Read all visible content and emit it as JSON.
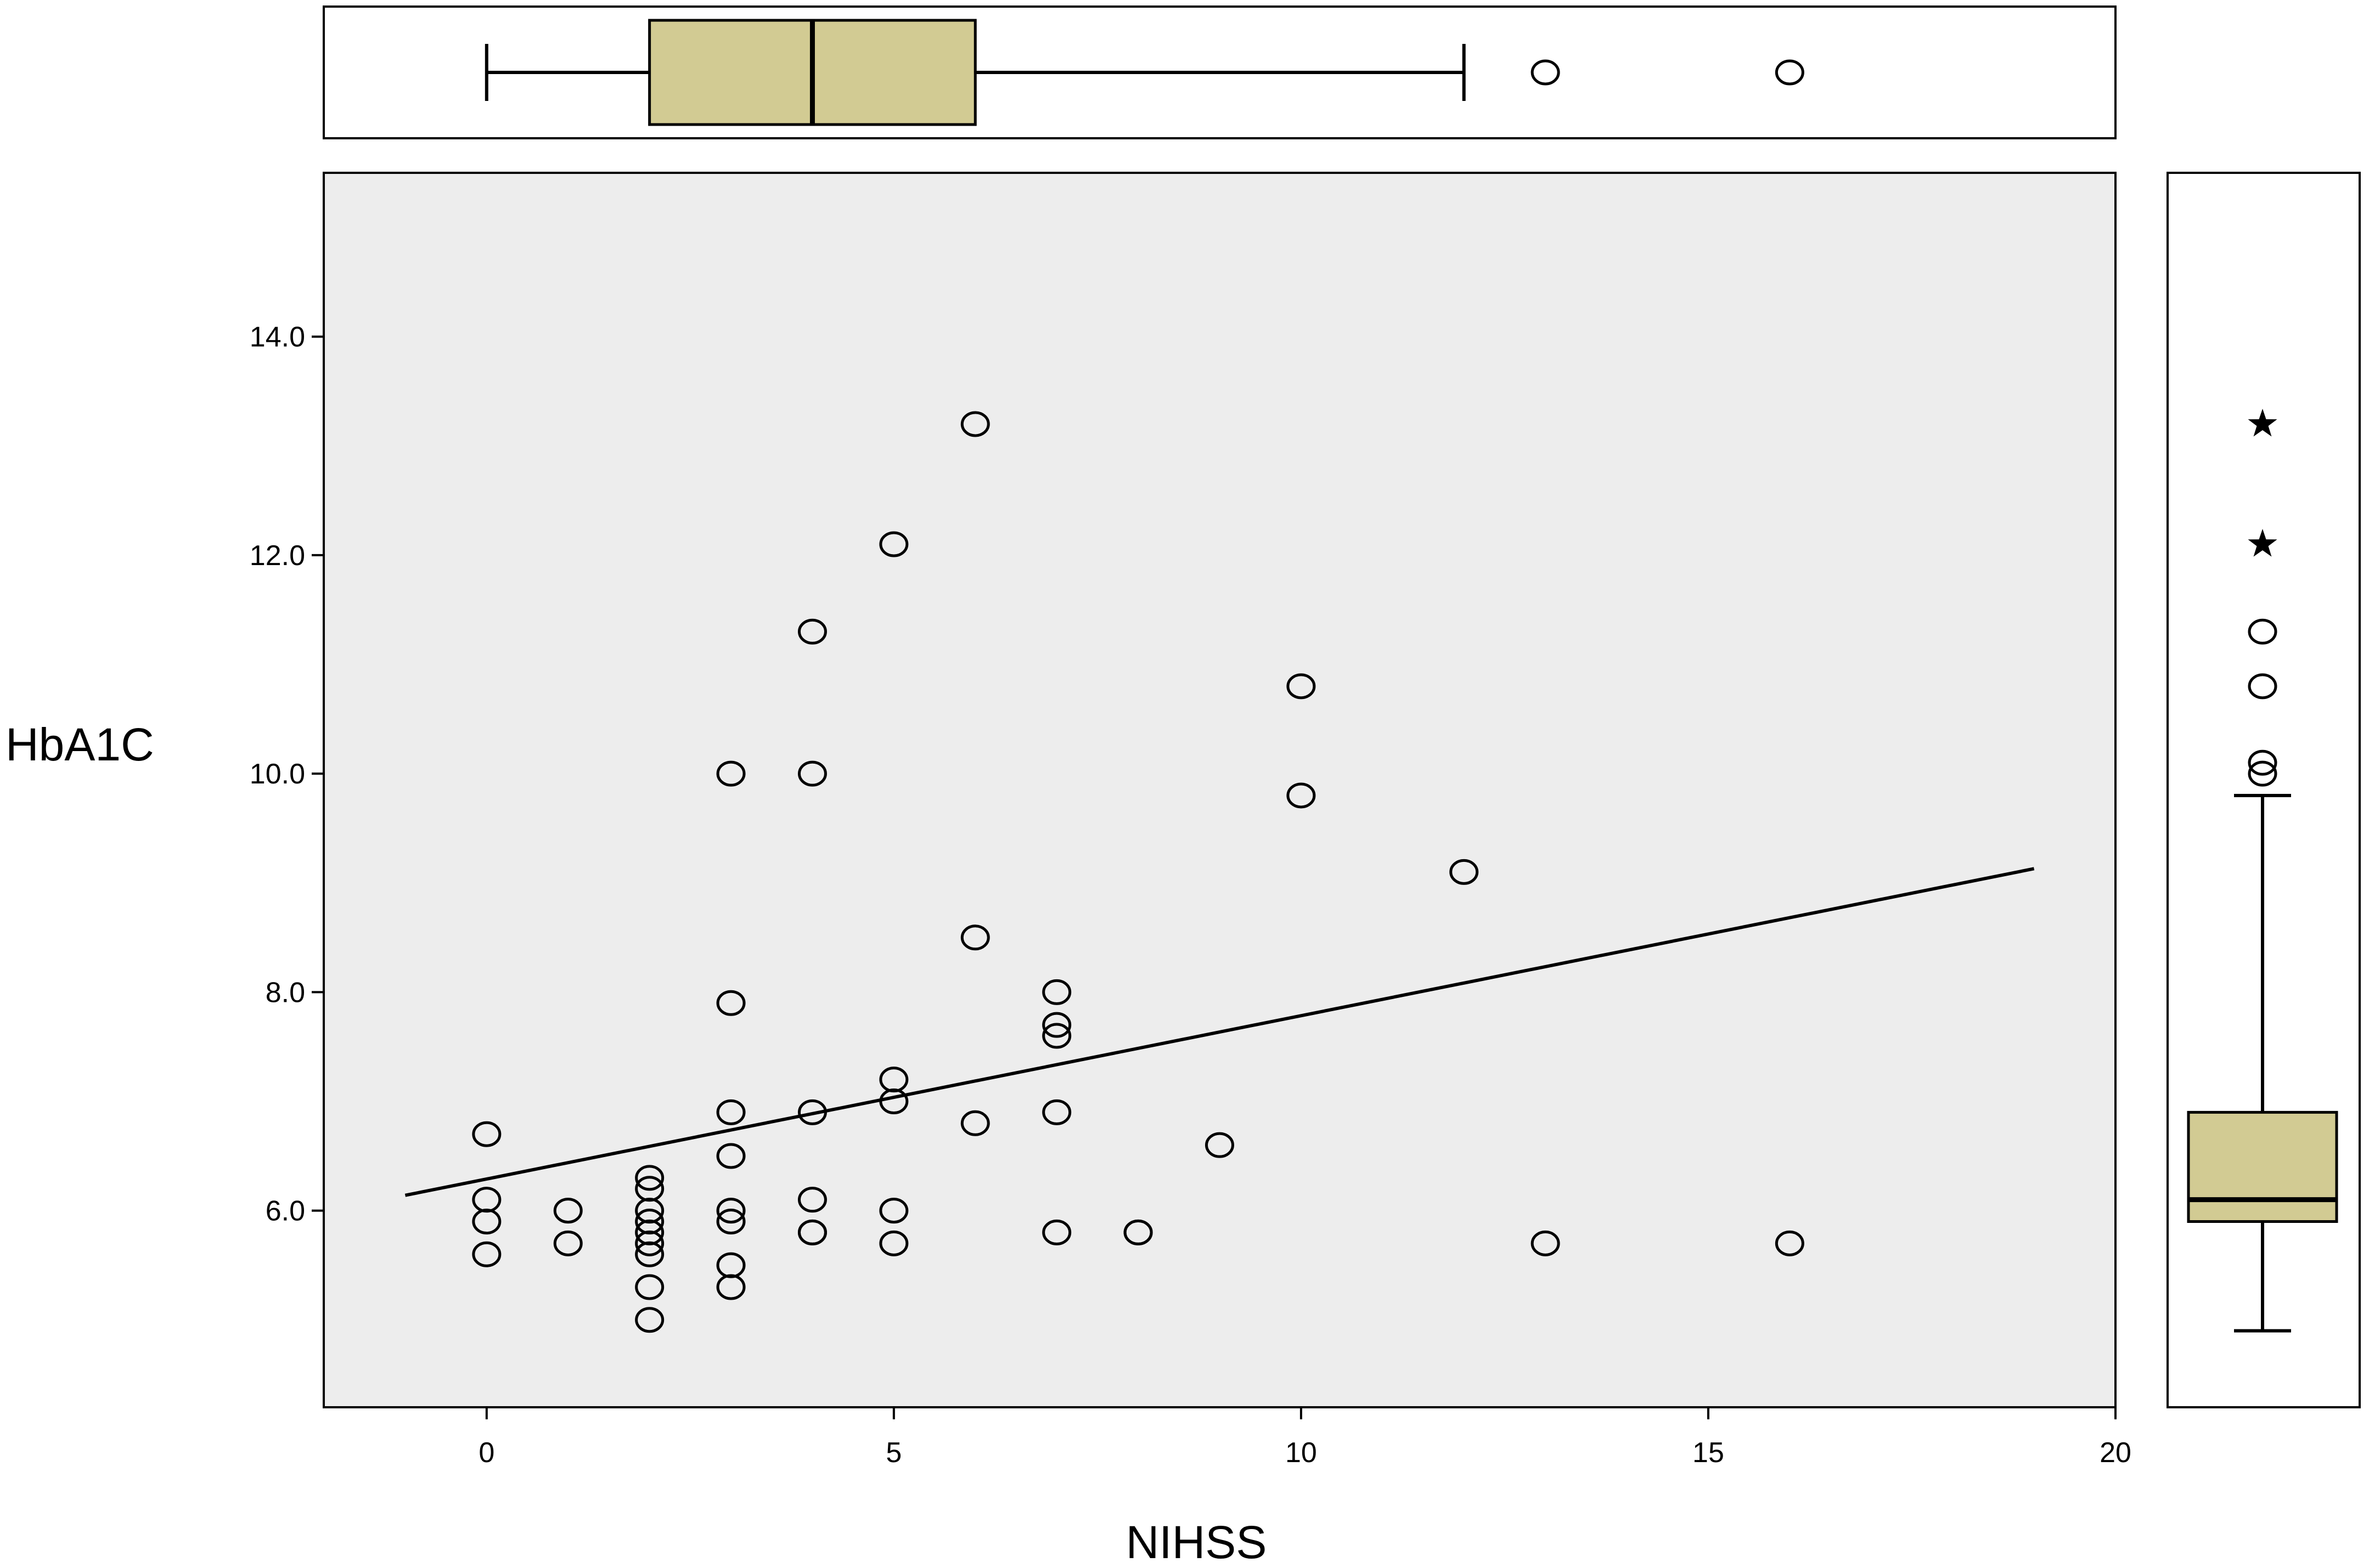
{
  "chart_data": {
    "type": "scatter",
    "xlabel": "NIHSS",
    "ylabel": "HbA1C",
    "xlim": [
      -2,
      20
    ],
    "ylim": [
      4.2,
      15.5
    ],
    "x_ticks": [
      0,
      5,
      10,
      15,
      20
    ],
    "y_ticks": [
      6.0,
      8.0,
      10.0,
      12.0,
      14.0
    ],
    "x_tick_labels": [
      "0",
      "5",
      "10",
      "15",
      "20"
    ],
    "y_tick_labels": [
      "6.0",
      "8.0",
      "10.0",
      "12.0",
      "14.0"
    ],
    "grid": false,
    "points": [
      {
        "x": 0,
        "y": 6.7
      },
      {
        "x": 0,
        "y": 6.1
      },
      {
        "x": 0,
        "y": 5.9
      },
      {
        "x": 0,
        "y": 5.6
      },
      {
        "x": 1,
        "y": 6.0
      },
      {
        "x": 1,
        "y": 5.7
      },
      {
        "x": 2,
        "y": 6.3
      },
      {
        "x": 2,
        "y": 6.2
      },
      {
        "x": 2,
        "y": 6.0
      },
      {
        "x": 2,
        "y": 5.9
      },
      {
        "x": 2,
        "y": 5.8
      },
      {
        "x": 2,
        "y": 5.7
      },
      {
        "x": 2,
        "y": 5.6
      },
      {
        "x": 2,
        "y": 5.3
      },
      {
        "x": 2,
        "y": 5.0
      },
      {
        "x": 3,
        "y": 10.0
      },
      {
        "x": 3,
        "y": 7.9
      },
      {
        "x": 3,
        "y": 6.9
      },
      {
        "x": 3,
        "y": 6.5
      },
      {
        "x": 3,
        "y": 6.0
      },
      {
        "x": 3,
        "y": 5.9
      },
      {
        "x": 3,
        "y": 5.5
      },
      {
        "x": 3,
        "y": 5.3
      },
      {
        "x": 4,
        "y": 11.3
      },
      {
        "x": 4,
        "y": 10.0
      },
      {
        "x": 4,
        "y": 6.9
      },
      {
        "x": 4,
        "y": 6.1
      },
      {
        "x": 4,
        "y": 5.8
      },
      {
        "x": 4,
        "y": 5.8
      },
      {
        "x": 5,
        "y": 12.1
      },
      {
        "x": 5,
        "y": 7.2
      },
      {
        "x": 5,
        "y": 7.0
      },
      {
        "x": 5,
        "y": 6.0
      },
      {
        "x": 5,
        "y": 5.7
      },
      {
        "x": 6,
        "y": 13.2
      },
      {
        "x": 6,
        "y": 8.5
      },
      {
        "x": 6,
        "y": 6.8
      },
      {
        "x": 7,
        "y": 8.0
      },
      {
        "x": 7,
        "y": 7.7
      },
      {
        "x": 7,
        "y": 7.6
      },
      {
        "x": 7,
        "y": 6.9
      },
      {
        "x": 7,
        "y": 5.8
      },
      {
        "x": 8,
        "y": 5.8
      },
      {
        "x": 8,
        "y": 5.8
      },
      {
        "x": 9,
        "y": 6.6
      },
      {
        "x": 10,
        "y": 10.8
      },
      {
        "x": 10,
        "y": 9.8
      },
      {
        "x": 12,
        "y": 9.1
      },
      {
        "x": 13,
        "y": 5.7
      },
      {
        "x": 16,
        "y": 5.7
      }
    ],
    "fit_line": {
      "x": [
        -1,
        19
      ],
      "y": [
        6.14,
        9.13
      ]
    },
    "box_x": {
      "whisker_low": 0,
      "q1": 2,
      "median": 4,
      "q3": 6,
      "whisker_high": 12,
      "outliers_circle": [
        13,
        16
      ]
    },
    "box_y": {
      "whisker_low": 4.9,
      "q1": 5.9,
      "median": 6.1,
      "q3": 6.9,
      "whisker_high": 9.8,
      "outliers_circle": [
        10.0,
        10.1,
        10.8,
        11.3
      ],
      "outliers_star": [
        12.1,
        13.2
      ]
    },
    "colors": {
      "plot_background": "#ededed",
      "box_fill": "#d2cb93",
      "line": "#000000",
      "marker": "#000000"
    }
  }
}
